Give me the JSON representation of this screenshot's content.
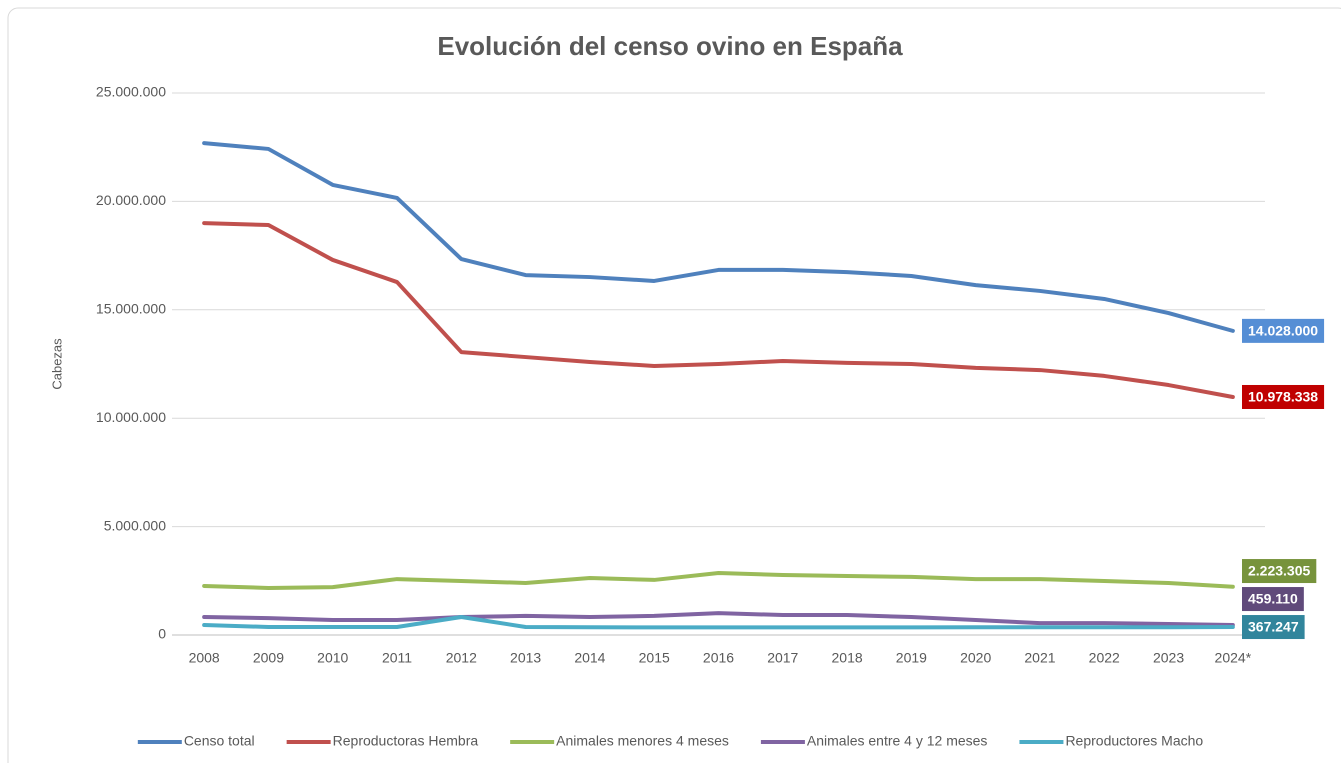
{
  "chart_data": {
    "type": "line",
    "title": "Evolución del censo ovino en España",
    "y_label": "Cabezas",
    "categories": [
      "2008",
      "2009",
      "2010",
      "2011",
      "2012",
      "2013",
      "2014",
      "2015",
      "2016",
      "2017",
      "2018",
      "2019",
      "2020",
      "2021",
      "2022",
      "2023",
      "2024*"
    ],
    "ylim": [
      0,
      25000000
    ],
    "yticks": [
      0,
      {
        "value": 5000000,
        "label": "5.000.000"
      },
      {
        "value": 10000000,
        "label": "10.000.000"
      },
      {
        "value": 15000000,
        "label": "15.000.000"
      },
      {
        "value": 20000000,
        "label": "20.000.000"
      },
      {
        "value": 25000000,
        "label": "25.000.000"
      }
    ],
    "grid": true,
    "legend": "bottom",
    "series": [
      {
        "name": "Censo total",
        "color": "#4f81bd",
        "label_color": "#558ed5",
        "values": [
          22690000,
          22420000,
          20760000,
          20160000,
          17340000,
          16600000,
          16510000,
          16330000,
          16840000,
          16840000,
          16740000,
          16560000,
          16140000,
          15870000,
          15500000,
          14850000,
          14028000
        ],
        "value_labels": [
          null,
          null,
          null,
          null,
          null,
          null,
          null,
          null,
          null,
          null,
          null,
          null,
          null,
          null,
          null,
          null,
          "14.028.000"
        ]
      },
      {
        "name": "Reproductoras Hembra",
        "color": "#c0504d",
        "label_color": "#c00000",
        "values": [
          19000000,
          18910000,
          17300000,
          16280000,
          13050000,
          12820000,
          12590000,
          12410000,
          12500000,
          12640000,
          12550000,
          12500000,
          12320000,
          12220000,
          11950000,
          11530000,
          10978338
        ],
        "value_labels": [
          null,
          null,
          null,
          null,
          null,
          null,
          null,
          null,
          null,
          null,
          null,
          null,
          null,
          null,
          null,
          null,
          "10.978.338"
        ]
      },
      {
        "name": "Animales menores 4 meses",
        "color": "#9bbb59",
        "label_color": "#77933c",
        "values": [
          2260000,
          2170000,
          2210000,
          2580000,
          2490000,
          2400000,
          2630000,
          2540000,
          2860000,
          2770000,
          2720000,
          2680000,
          2580000,
          2580000,
          2490000,
          2400000,
          2223305
        ],
        "value_labels": [
          null,
          null,
          null,
          null,
          null,
          null,
          null,
          null,
          null,
          null,
          null,
          null,
          null,
          null,
          null,
          null,
          "2.223.305"
        ]
      },
      {
        "name": "Animales entre 4 y 12 meses",
        "color": "#8064a2",
        "label_color": "#604a7b",
        "values": [
          830000,
          780000,
          690000,
          690000,
          830000,
          880000,
          830000,
          880000,
          1010000,
          920000,
          920000,
          830000,
          690000,
          550000,
          550000,
          510000,
          459110
        ],
        "value_labels": [
          null,
          null,
          null,
          null,
          null,
          null,
          null,
          null,
          null,
          null,
          null,
          null,
          null,
          null,
          null,
          null,
          "459.110"
        ]
      },
      {
        "name": "Reproductores Macho",
        "color": "#4bacc6",
        "label_color": "#31859c",
        "values": [
          460000,
          370000,
          370000,
          370000,
          830000,
          370000,
          360000,
          350000,
          350000,
          350000,
          350000,
          350000,
          360000,
          360000,
          360000,
          360000,
          367247
        ],
        "value_labels": [
          null,
          null,
          null,
          null,
          null,
          null,
          null,
          null,
          null,
          null,
          null,
          null,
          null,
          null,
          null,
          null,
          "367.247"
        ]
      }
    ]
  }
}
